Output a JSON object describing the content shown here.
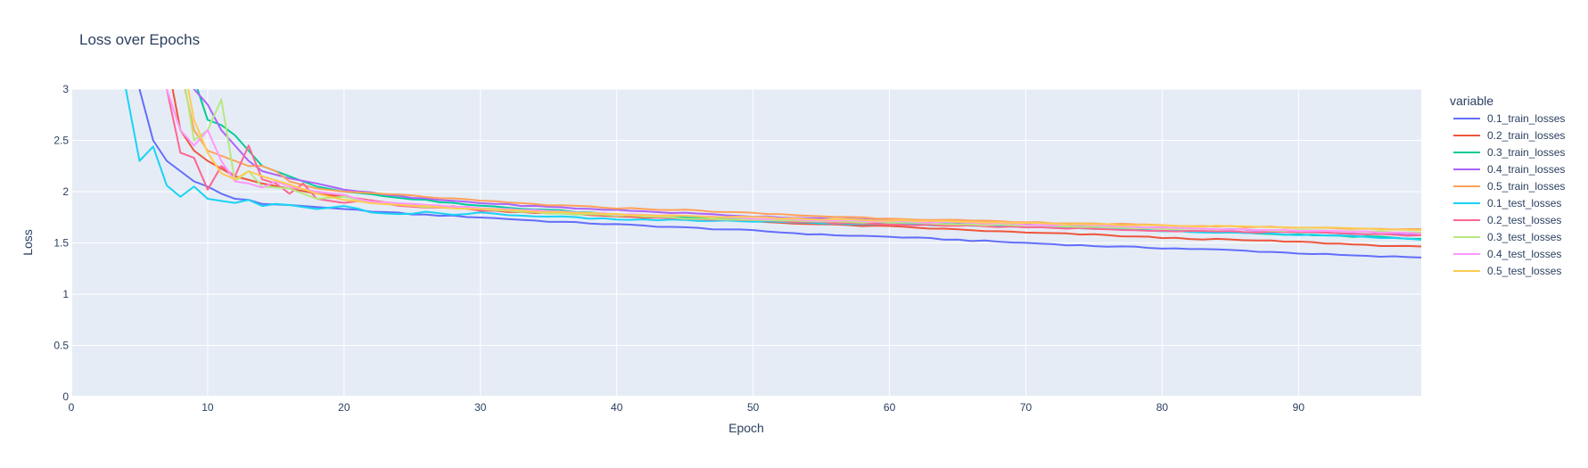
{
  "chart_data": {
    "type": "line",
    "title": "Loss over Epochs",
    "xlabel": "Epoch",
    "ylabel": "Loss",
    "xlim": [
      0,
      99
    ],
    "ylim": [
      0,
      3
    ],
    "xticks": [
      0,
      10,
      20,
      30,
      40,
      50,
      60,
      70,
      80,
      90
    ],
    "yticks": [
      0,
      0.5,
      1,
      1.5,
      2,
      2.5,
      3
    ],
    "ytick_labels": [
      "0",
      "0.5",
      "1",
      "1.5",
      "2",
      "2.5",
      "3"
    ],
    "grid": true,
    "legend_title": "variable",
    "legend_position": "right",
    "plot_bg": "#E5ECF6",
    "series": [
      {
        "name": "0.1_train_losses",
        "color": "#636EFA",
        "anchors": [
          [
            0,
            8.0
          ],
          [
            4,
            3.6
          ],
          [
            5,
            3.0
          ],
          [
            6,
            2.5
          ],
          [
            7,
            2.3
          ],
          [
            8,
            2.2
          ],
          [
            9,
            2.1
          ],
          [
            10,
            2.05
          ],
          [
            11,
            1.98
          ],
          [
            12,
            1.93
          ],
          [
            13,
            1.92
          ],
          [
            14,
            1.88
          ],
          [
            16,
            1.87
          ],
          [
            18,
            1.85
          ],
          [
            20,
            1.83
          ],
          [
            25,
            1.78
          ],
          [
            30,
            1.75
          ],
          [
            35,
            1.71
          ],
          [
            40,
            1.68
          ],
          [
            45,
            1.65
          ],
          [
            50,
            1.62
          ],
          [
            55,
            1.58
          ],
          [
            60,
            1.56
          ],
          [
            65,
            1.53
          ],
          [
            70,
            1.5
          ],
          [
            75,
            1.47
          ],
          [
            80,
            1.45
          ],
          [
            85,
            1.43
          ],
          [
            90,
            1.4
          ],
          [
            95,
            1.37
          ],
          [
            99,
            1.36
          ]
        ]
      },
      {
        "name": "0.2_train_losses",
        "color": "#EF553B",
        "anchors": [
          [
            0,
            8.0
          ],
          [
            7,
            3.3
          ],
          [
            8,
            2.6
          ],
          [
            9,
            2.4
          ],
          [
            10,
            2.3
          ],
          [
            12,
            2.15
          ],
          [
            14,
            2.08
          ],
          [
            16,
            2.03
          ],
          [
            18,
            1.98
          ],
          [
            20,
            1.95
          ],
          [
            25,
            1.87
          ],
          [
            30,
            1.82
          ],
          [
            35,
            1.79
          ],
          [
            40,
            1.76
          ],
          [
            45,
            1.74
          ],
          [
            50,
            1.71
          ],
          [
            55,
            1.68
          ],
          [
            60,
            1.66
          ],
          [
            65,
            1.63
          ],
          [
            70,
            1.6
          ],
          [
            75,
            1.58
          ],
          [
            80,
            1.55
          ],
          [
            85,
            1.53
          ],
          [
            90,
            1.51
          ],
          [
            95,
            1.48
          ],
          [
            99,
            1.46
          ]
        ]
      },
      {
        "name": "0.3_train_losses",
        "color": "#00CC96",
        "anchors": [
          [
            0,
            8.0
          ],
          [
            8,
            3.5
          ],
          [
            9,
            3.1
          ],
          [
            10,
            2.7
          ],
          [
            11,
            2.65
          ],
          [
            12,
            2.55
          ],
          [
            13,
            2.4
          ],
          [
            14,
            2.25
          ],
          [
            16,
            2.15
          ],
          [
            18,
            2.05
          ],
          [
            20,
            2.0
          ],
          [
            25,
            1.93
          ],
          [
            30,
            1.86
          ],
          [
            35,
            1.82
          ],
          [
            40,
            1.78
          ],
          [
            45,
            1.75
          ],
          [
            50,
            1.73
          ],
          [
            55,
            1.71
          ],
          [
            60,
            1.69
          ],
          [
            65,
            1.68
          ],
          [
            70,
            1.66
          ],
          [
            75,
            1.64
          ],
          [
            80,
            1.62
          ],
          [
            85,
            1.6
          ],
          [
            90,
            1.58
          ],
          [
            95,
            1.56
          ],
          [
            99,
            1.54
          ]
        ]
      },
      {
        "name": "0.4_train_losses",
        "color": "#AB63FA",
        "anchors": [
          [
            0,
            8.0
          ],
          [
            8,
            3.4
          ],
          [
            9,
            3.0
          ],
          [
            10,
            2.85
          ],
          [
            11,
            2.6
          ],
          [
            12,
            2.45
          ],
          [
            13,
            2.3
          ],
          [
            14,
            2.2
          ],
          [
            16,
            2.13
          ],
          [
            18,
            2.08
          ],
          [
            20,
            2.02
          ],
          [
            25,
            1.94
          ],
          [
            30,
            1.89
          ],
          [
            35,
            1.85
          ],
          [
            40,
            1.82
          ],
          [
            45,
            1.79
          ],
          [
            50,
            1.76
          ],
          [
            55,
            1.74
          ],
          [
            60,
            1.72
          ],
          [
            65,
            1.7
          ],
          [
            70,
            1.68
          ],
          [
            75,
            1.66
          ],
          [
            80,
            1.65
          ],
          [
            85,
            1.63
          ],
          [
            90,
            1.61
          ],
          [
            95,
            1.59
          ],
          [
            99,
            1.58
          ]
        ]
      },
      {
        "name": "0.5_train_losses",
        "color": "#FFA15A",
        "anchors": [
          [
            0,
            8.0
          ],
          [
            8,
            3.2
          ],
          [
            9,
            2.6
          ],
          [
            10,
            2.4
          ],
          [
            11,
            2.35
          ],
          [
            12,
            2.3
          ],
          [
            13,
            2.25
          ],
          [
            14,
            2.25
          ],
          [
            15,
            2.2
          ],
          [
            16,
            2.1
          ],
          [
            18,
            2.03
          ],
          [
            20,
            2.0
          ],
          [
            25,
            1.96
          ],
          [
            30,
            1.91
          ],
          [
            35,
            1.87
          ],
          [
            40,
            1.84
          ],
          [
            45,
            1.82
          ],
          [
            50,
            1.79
          ],
          [
            55,
            1.76
          ],
          [
            60,
            1.74
          ],
          [
            65,
            1.72
          ],
          [
            70,
            1.7
          ],
          [
            75,
            1.69
          ],
          [
            80,
            1.67
          ],
          [
            85,
            1.66
          ],
          [
            90,
            1.65
          ],
          [
            95,
            1.64
          ],
          [
            99,
            1.63
          ]
        ]
      },
      {
        "name": "0.1_test_losses",
        "color": "#19D3F3",
        "anchors": [
          [
            0,
            8.0
          ],
          [
            4,
            3.0
          ],
          [
            5,
            2.3
          ],
          [
            6,
            2.44
          ],
          [
            7,
            2.06
          ],
          [
            8,
            1.95
          ],
          [
            9,
            2.05
          ],
          [
            10,
            1.93
          ],
          [
            11,
            1.91
          ],
          [
            12,
            1.89
          ],
          [
            13,
            1.92
          ],
          [
            14,
            1.86
          ],
          [
            15,
            1.88
          ],
          [
            16,
            1.87
          ],
          [
            18,
            1.83
          ],
          [
            20,
            1.86
          ],
          [
            22,
            1.8
          ],
          [
            24,
            1.78
          ],
          [
            26,
            1.8
          ],
          [
            28,
            1.77
          ],
          [
            30,
            1.8
          ],
          [
            32,
            1.77
          ],
          [
            35,
            1.76
          ],
          [
            38,
            1.74
          ],
          [
            40,
            1.73
          ],
          [
            45,
            1.72
          ],
          [
            50,
            1.71
          ],
          [
            55,
            1.69
          ],
          [
            60,
            1.68
          ],
          [
            65,
            1.67
          ],
          [
            70,
            1.66
          ],
          [
            75,
            1.64
          ],
          [
            80,
            1.62
          ],
          [
            85,
            1.6
          ],
          [
            90,
            1.58
          ],
          [
            95,
            1.56
          ],
          [
            99,
            1.53
          ]
        ]
      },
      {
        "name": "0.2_test_losses",
        "color": "#FF6692",
        "anchors": [
          [
            0,
            8.0
          ],
          [
            7,
            3.0
          ],
          [
            8,
            2.38
          ],
          [
            9,
            2.33
          ],
          [
            10,
            2.02
          ],
          [
            11,
            2.25
          ],
          [
            12,
            2.15
          ],
          [
            13,
            2.45
          ],
          [
            14,
            2.12
          ],
          [
            15,
            2.08
          ],
          [
            16,
            1.98
          ],
          [
            17,
            2.08
          ],
          [
            18,
            1.93
          ],
          [
            20,
            1.89
          ],
          [
            22,
            1.92
          ],
          [
            24,
            1.86
          ],
          [
            26,
            1.84
          ],
          [
            28,
            1.86
          ],
          [
            30,
            1.82
          ],
          [
            35,
            1.8
          ],
          [
            40,
            1.77
          ],
          [
            45,
            1.74
          ],
          [
            50,
            1.72
          ],
          [
            55,
            1.7
          ],
          [
            60,
            1.68
          ],
          [
            65,
            1.67
          ],
          [
            70,
            1.65
          ],
          [
            75,
            1.64
          ],
          [
            80,
            1.62
          ],
          [
            85,
            1.61
          ],
          [
            90,
            1.6
          ],
          [
            95,
            1.59
          ],
          [
            99,
            1.57
          ]
        ]
      },
      {
        "name": "0.3_test_losses",
        "color": "#B6E880",
        "anchors": [
          [
            0,
            8.0
          ],
          [
            8,
            3.3
          ],
          [
            9,
            2.5
          ],
          [
            10,
            2.6
          ],
          [
            11,
            2.9
          ],
          [
            11.5,
            2.35
          ],
          [
            12,
            2.1
          ],
          [
            13,
            2.2
          ],
          [
            14,
            2.05
          ],
          [
            16,
            2.03
          ],
          [
            18,
            1.93
          ],
          [
            20,
            1.95
          ],
          [
            22,
            1.9
          ],
          [
            25,
            1.86
          ],
          [
            30,
            1.83
          ],
          [
            35,
            1.79
          ],
          [
            40,
            1.77
          ],
          [
            45,
            1.74
          ],
          [
            50,
            1.72
          ],
          [
            55,
            1.71
          ],
          [
            60,
            1.7
          ],
          [
            65,
            1.68
          ],
          [
            70,
            1.67
          ],
          [
            75,
            1.66
          ],
          [
            80,
            1.64
          ],
          [
            85,
            1.63
          ],
          [
            90,
            1.62
          ],
          [
            95,
            1.61
          ],
          [
            99,
            1.6
          ]
        ]
      },
      {
        "name": "0.4_test_losses",
        "color": "#FF97FF",
        "anchors": [
          [
            0,
            8.0
          ],
          [
            7,
            3.0
          ],
          [
            8,
            2.6
          ],
          [
            9,
            2.45
          ],
          [
            10,
            2.6
          ],
          [
            11,
            2.3
          ],
          [
            12,
            2.1
          ],
          [
            13,
            2.08
          ],
          [
            14,
            2.04
          ],
          [
            15,
            2.1
          ],
          [
            16,
            2.05
          ],
          [
            18,
            2.0
          ],
          [
            20,
            1.97
          ],
          [
            22,
            1.9
          ],
          [
            25,
            1.88
          ],
          [
            30,
            1.84
          ],
          [
            35,
            1.81
          ],
          [
            40,
            1.78
          ],
          [
            45,
            1.76
          ],
          [
            50,
            1.74
          ],
          [
            55,
            1.72
          ],
          [
            60,
            1.71
          ],
          [
            65,
            1.7
          ],
          [
            70,
            1.68
          ],
          [
            75,
            1.67
          ],
          [
            80,
            1.65
          ],
          [
            85,
            1.63
          ],
          [
            90,
            1.62
          ],
          [
            95,
            1.61
          ],
          [
            99,
            1.59
          ]
        ]
      },
      {
        "name": "0.5_test_losses",
        "color": "#FECB52",
        "anchors": [
          [
            0,
            8.0
          ],
          [
            8,
            3.4
          ],
          [
            8.5,
            3.0
          ],
          [
            9,
            2.7
          ],
          [
            10,
            2.38
          ],
          [
            11,
            2.18
          ],
          [
            12,
            2.12
          ],
          [
            13,
            2.2
          ],
          [
            14,
            2.15
          ],
          [
            16,
            2.07
          ],
          [
            18,
            1.98
          ],
          [
            20,
            1.92
          ],
          [
            22,
            1.89
          ],
          [
            25,
            1.86
          ],
          [
            30,
            1.83
          ],
          [
            35,
            1.8
          ],
          [
            40,
            1.78
          ],
          [
            45,
            1.76
          ],
          [
            50,
            1.75
          ],
          [
            55,
            1.73
          ],
          [
            60,
            1.72
          ],
          [
            65,
            1.71
          ],
          [
            70,
            1.69
          ],
          [
            75,
            1.68
          ],
          [
            80,
            1.67
          ],
          [
            85,
            1.66
          ],
          [
            90,
            1.65
          ],
          [
            95,
            1.64
          ],
          [
            99,
            1.63
          ]
        ]
      }
    ]
  }
}
